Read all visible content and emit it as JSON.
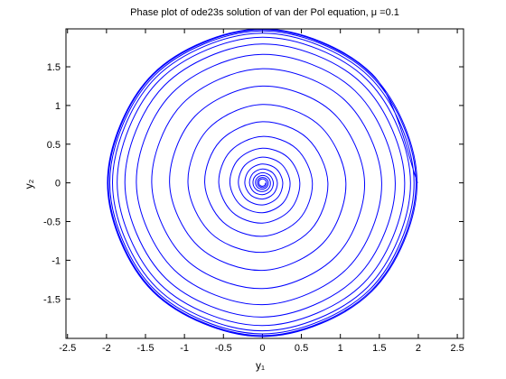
{
  "chart_data": {
    "type": "line",
    "title": "Phase plot of ode23s solution of van der Pol equation, μ =0.1",
    "x_label": "y₁",
    "y_label": "y₂",
    "xlim": [
      -2.52,
      2.58
    ],
    "ylim": [
      -2.01,
      1.99
    ],
    "xticks": [
      -2.5,
      -2,
      -1.5,
      -1,
      -0.5,
      0,
      0.5,
      1,
      1.5,
      2,
      2.5
    ],
    "yticks": [
      -1.5,
      -1,
      -0.5,
      0,
      0.5,
      1,
      1.5
    ],
    "x": [
      0.04,
      0.03,
      0,
      -0.032,
      -0.047,
      -0.035,
      0,
      0.037,
      0.055,
      0.041,
      0,
      -0.044,
      -0.065,
      -0.048,
      0,
      0.051,
      0.075,
      0.055,
      0,
      -0.06,
      -0.089,
      -0.065,
      0,
      0.07,
      0.103,
      0.076,
      0,
      -0.083,
      -0.121,
      -0.089,
      0,
      0.096,
      0.14,
      0.104,
      0,
      -0.113,
      -0.166,
      -0.122,
      0,
      0.131,
      0.192,
      0.142,
      0,
      -0.154,
      -0.226,
      -0.166,
      0,
      0.179,
      0.261,
      0.193,
      0,
      -0.21,
      -0.308,
      -0.226,
      0,
      0.243,
      0.355,
      0.262,
      0,
      -0.284,
      -0.417,
      -0.306,
      0,
      0.328,
      0.48,
      0.353,
      0,
      -0.382,
      -0.56,
      -0.41,
      0,
      0.439,
      0.641,
      0.471,
      0,
      -0.506,
      -0.74,
      -0.541,
      0,
      0.576,
      0.84,
      0.614,
      0,
      -0.655,
      -0.955,
      -0.696,
      0,
      0.737,
      1.071,
      0.778,
      0,
      -0.821,
      -1.191,
      -0.863,
      0,
      0.906,
      1.311,
      0.946,
      0,
      -0.985,
      -1.42,
      -1.024,
      0,
      1.063,
      1.53,
      1.097,
      0,
      -1.128,
      -1.617,
      -1.159,
      0,
      1.189,
      1.704,
      1.215,
      0,
      -1.237,
      -1.764,
      -1.258,
      0,
      1.28,
      1.825,
      1.297,
      0,
      -1.31,
      -1.863,
      -1.324,
      0,
      1.337,
      1.9,
      1.348,
      0,
      -1.356,
      -1.923,
      -1.364,
      0,
      1.371,
      1.945,
      1.378,
      0,
      -1.382,
      -1.958,
      -1.386,
      0,
      1.391,
      1.97,
      1.394,
      0,
      -1.397,
      -1.977,
      -1.399,
      0,
      1.402,
      1.984,
      1.403,
      0,
      -1.405,
      -1.988,
      -1.406,
      0,
      1.407,
      1.991
    ],
    "series": [
      {
        "color": "#0000ff",
        "values": [
          0,
          -0.03,
          -0.044,
          -0.032,
          0,
          0.035,
          0.051,
          0.037,
          0,
          -0.041,
          -0.06,
          -0.044,
          0,
          0.048,
          0.07,
          0.051,
          0,
          -0.055,
          -0.082,
          -0.06,
          0,
          0.065,
          0.096,
          0.07,
          0,
          -0.076,
          -0.112,
          -0.083,
          0,
          0.089,
          0.131,
          0.096,
          0,
          -0.104,
          -0.153,
          -0.113,
          0,
          0.122,
          0.179,
          0.131,
          0,
          -0.142,
          -0.209,
          -0.154,
          0,
          0.166,
          0.244,
          0.179,
          0,
          -0.193,
          -0.285,
          -0.21,
          0,
          0.226,
          0.332,
          0.243,
          0,
          -0.262,
          -0.386,
          -0.284,
          0,
          0.306,
          0.448,
          0.328,
          0,
          -0.353,
          -0.52,
          -0.382,
          0,
          0.41,
          0.6,
          0.439,
          0,
          -0.471,
          -0.691,
          -0.506,
          0,
          0.541,
          0.79,
          0.576,
          0,
          -0.614,
          -0.898,
          -0.655,
          0,
          0.696,
          1.013,
          0.737,
          0,
          -0.778,
          -1.131,
          -0.821,
          0,
          0.863,
          1.251,
          0.906,
          0,
          -0.946,
          -1.366,
          -0.985,
          0,
          1.024,
          1.475,
          1.063,
          0,
          -1.097,
          -1.574,
          -1.128,
          0,
          1.159,
          1.66,
          1.189,
          0,
          -1.215,
          -1.734,
          -1.237,
          0,
          1.258,
          1.795,
          1.28,
          0,
          -1.297,
          -1.844,
          -1.31,
          0,
          1.324,
          1.882,
          1.337,
          0,
          -1.348,
          -1.912,
          -1.356,
          0,
          1.364,
          1.934,
          1.371,
          0,
          -1.378,
          -1.951,
          -1.382,
          0,
          1.386,
          1.964,
          1.391,
          0,
          -1.394,
          -1.974,
          -1.397,
          0,
          1.399,
          1.98,
          1.402,
          0,
          -1.403,
          -1.986,
          -1.405,
          0,
          1.406,
          1.99,
          1.407,
          0
        ]
      }
    ]
  }
}
